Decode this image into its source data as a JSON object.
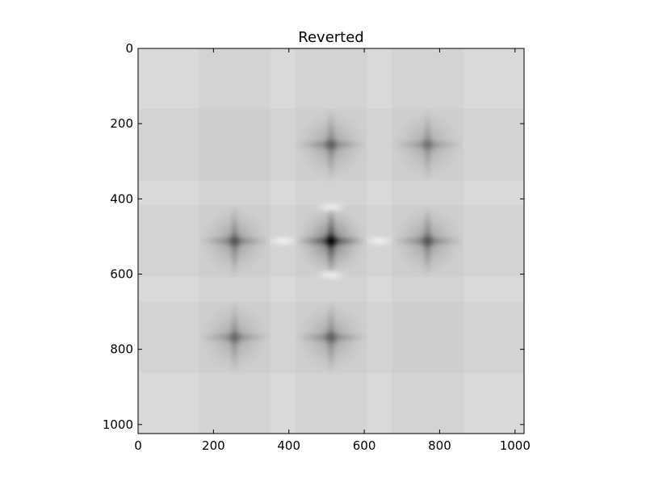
{
  "chart_data": {
    "type": "heatmap",
    "title": "Reverted",
    "xlabel": "",
    "ylabel": "",
    "xlim": [
      0,
      1024
    ],
    "ylim": [
      1024,
      0
    ],
    "x_ticks": [
      0,
      200,
      400,
      600,
      800,
      1000
    ],
    "y_ticks": [
      0,
      200,
      400,
      600,
      800,
      1000
    ],
    "x_tick_labels": [
      "0",
      "200",
      "400",
      "600",
      "800",
      "1000"
    ],
    "y_tick_labels": [
      "0",
      "200",
      "400",
      "600",
      "800",
      "1000"
    ],
    "colormap": "gray",
    "background_value_color": "#d9d9d9",
    "grid": false,
    "blobs": [
      {
        "x": 512,
        "y": 256,
        "intensity": 0.55
      },
      {
        "x": 768,
        "y": 256,
        "intensity": 0.45
      },
      {
        "x": 256,
        "y": 512,
        "intensity": 0.6
      },
      {
        "x": 512,
        "y": 512,
        "intensity": 1.0
      },
      {
        "x": 768,
        "y": 512,
        "intensity": 0.6
      },
      {
        "x": 256,
        "y": 768,
        "intensity": 0.5
      },
      {
        "x": 512,
        "y": 768,
        "intensity": 0.55
      }
    ],
    "bright_spots": [
      {
        "x": 512,
        "y": 422
      },
      {
        "x": 512,
        "y": 602
      },
      {
        "x": 384,
        "y": 512
      },
      {
        "x": 640,
        "y": 512
      }
    ]
  }
}
